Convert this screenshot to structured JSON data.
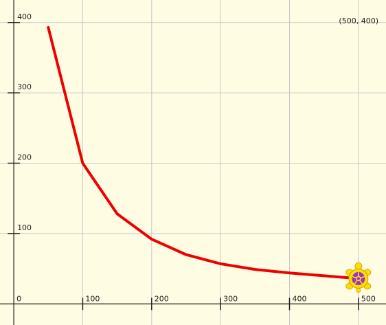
{
  "canvas": {
    "background": "#fefce3",
    "grid_color": "#c8c8c8",
    "axis_color": "#222222",
    "pen_color": "#ee0000",
    "corner_label": "(500, 400)"
  },
  "chart_data": {
    "type": "line",
    "grid": true,
    "xlim": [
      -20,
      540
    ],
    "ylim": [
      -30,
      432
    ],
    "x_ticks": [
      0,
      100,
      200,
      300,
      400,
      500
    ],
    "y_ticks": [
      100,
      200,
      300,
      400
    ],
    "x_tick_labels": [
      "0",
      "100",
      "200",
      "300",
      "400",
      "500"
    ],
    "y_tick_labels": [
      "100",
      "200",
      "300",
      "400"
    ],
    "series": [
      {
        "color": "#ee0000",
        "x": [
          50,
          100,
          150,
          200,
          250,
          300,
          350,
          400,
          450,
          500
        ],
        "y": [
          393,
          200,
          128,
          92,
          70,
          57,
          49,
          44,
          40,
          36
        ]
      }
    ]
  },
  "sprite": {
    "icon": "turtle-icon",
    "x": 500,
    "y": 36,
    "shell_color": "#ffdd00",
    "pattern_color": "#9933cc"
  }
}
